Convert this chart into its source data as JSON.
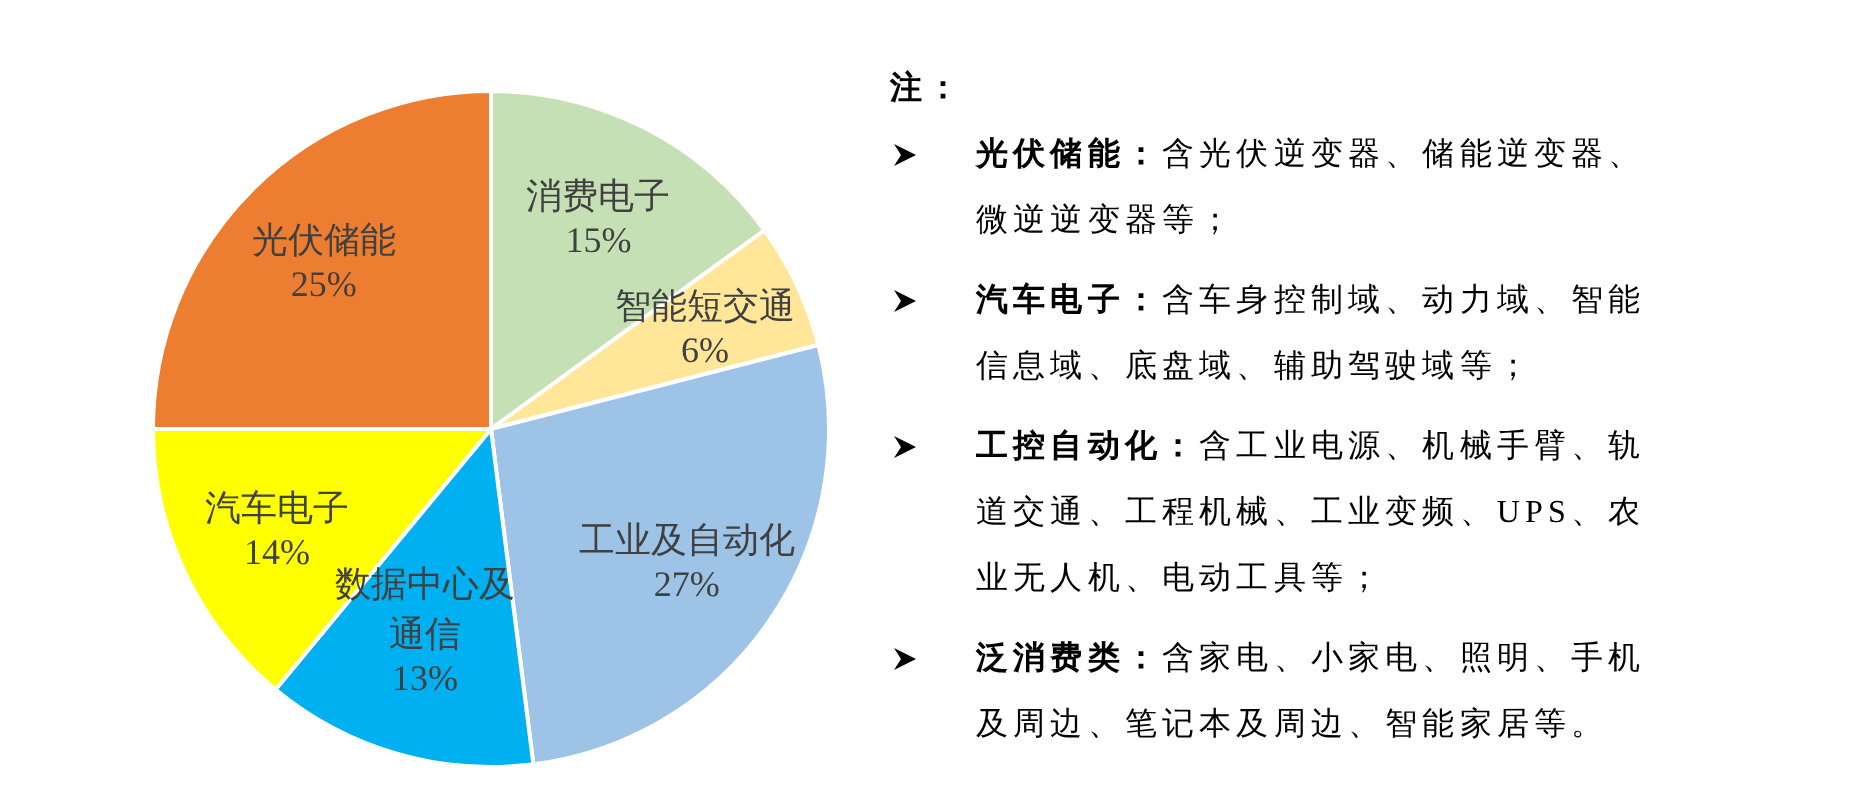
{
  "chart_data": {
    "type": "pie",
    "categories": [
      "消费电子",
      "智能短交通",
      "工业及自动化",
      "数据中心及通信",
      "汽车电子",
      "光伏储能"
    ],
    "values": [
      15,
      6,
      27,
      13,
      14,
      25
    ],
    "colors": [
      "#c5e0b4",
      "#ffe699",
      "#9dc3e6",
      "#00b0f0",
      "#ffff00",
      "#ed7d31"
    ],
    "value_labels": [
      "15%",
      "6%",
      "27%",
      "13%",
      "14%",
      "25%"
    ],
    "annotations": [
      "注：",
      "光伏储能：含光伏逆变器、储能逆变器、微逆逆变器等；",
      "汽车电子：含车身控制域、动力域、智能信息域、底盘域、辅助驾驶域等；",
      "工控自动化：含工业电源、机械手臂、轨道交通、工程机械、工业变频、UPS、农业无人机、电动工具等；",
      "泛消费类：含家电、小家电、照明、手机及周边、笔记本及周边、智能家居等。"
    ]
  }
}
